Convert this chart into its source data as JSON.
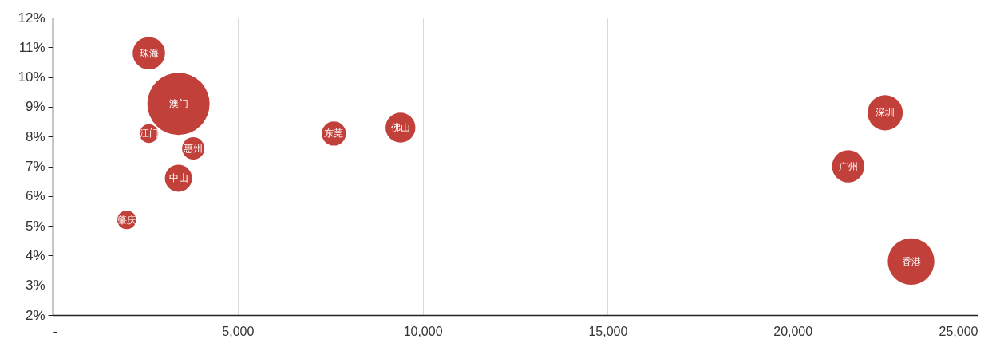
{
  "chart_data": {
    "type": "bubble",
    "marker": "circle",
    "grid": "x",
    "xlim": [
      0,
      25000
    ],
    "xticks": [
      {
        "value": 0,
        "label": "-"
      },
      {
        "value": 5000,
        "label": "5,000"
      },
      {
        "value": 10000,
        "label": "10,000"
      },
      {
        "value": 15000,
        "label": "15,000"
      },
      {
        "value": 20000,
        "label": "20,000"
      },
      {
        "value": 25000,
        "label": "25,000"
      }
    ],
    "ylim": [
      2,
      12
    ],
    "yticks": [
      {
        "value": 2,
        "label": "2%"
      },
      {
        "value": 3,
        "label": "3%"
      },
      {
        "value": 4,
        "label": "4%"
      },
      {
        "value": 5,
        "label": "5%"
      },
      {
        "value": 6,
        "label": "6%"
      },
      {
        "value": 7,
        "label": "7%"
      },
      {
        "value": 8,
        "label": "8%"
      },
      {
        "value": 9,
        "label": "9%"
      },
      {
        "value": 10,
        "label": "10%"
      },
      {
        "value": 11,
        "label": "11%"
      },
      {
        "value": 12,
        "label": "12%"
      }
    ],
    "series": [
      {
        "name": "珠海",
        "color": "#c1403a",
        "x": [
          2600
        ],
        "values": [
          10.8
        ],
        "sizes": [
          0.27
        ]
      },
      {
        "name": "澳门",
        "color": "#c1403a",
        "x": [
          3400
        ],
        "values": [
          9.1
        ],
        "sizes": [
          1
        ]
      },
      {
        "name": "江门",
        "color": "#c1403a",
        "x": [
          2600
        ],
        "values": [
          8.1
        ],
        "sizes": [
          0.09
        ]
      },
      {
        "name": "惠州",
        "color": "#c1403a",
        "x": [
          3800
        ],
        "values": [
          7.6
        ],
        "sizes": [
          0.13
        ]
      },
      {
        "name": "中山",
        "color": "#c1403a",
        "x": [
          3400
        ],
        "values": [
          6.6
        ],
        "sizes": [
          0.19
        ]
      },
      {
        "name": "肇庆",
        "color": "#c1403a",
        "x": [
          2000
        ],
        "values": [
          5.2
        ],
        "sizes": [
          0.09
        ]
      },
      {
        "name": "东莞",
        "color": "#c1403a",
        "x": [
          7600
        ],
        "values": [
          8.1
        ],
        "sizes": [
          0.15
        ]
      },
      {
        "name": "佛山",
        "color": "#c1403a",
        "x": [
          9400
        ],
        "values": [
          8.3
        ],
        "sizes": [
          0.23
        ]
      },
      {
        "name": "深圳",
        "color": "#c1403a",
        "x": [
          22500
        ],
        "values": [
          8.8
        ],
        "sizes": [
          0.32
        ]
      },
      {
        "name": "广州",
        "color": "#c1403a",
        "x": [
          21500
        ],
        "values": [
          7.0
        ],
        "sizes": [
          0.27
        ]
      },
      {
        "name": "香港",
        "color": "#c1403a",
        "x": [
          23200
        ],
        "values": [
          3.8
        ],
        "sizes": [
          0.56
        ]
      }
    ]
  }
}
